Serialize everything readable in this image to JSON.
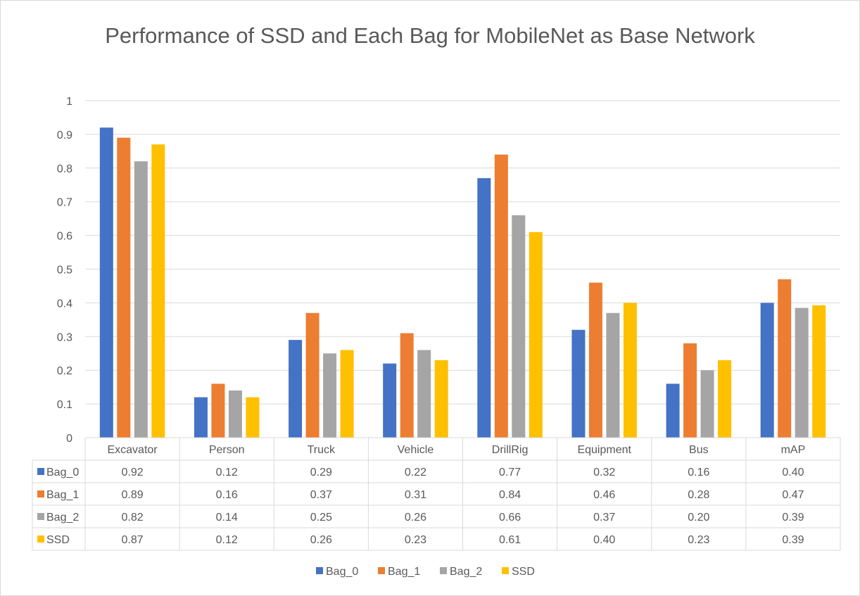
{
  "chart_data": {
    "type": "bar",
    "title": "Performance of SSD and Each Bag for MobileNet as Base Network",
    "categories": [
      "Excavator",
      "Person",
      "Truck",
      "Vehicle",
      "DrillRig",
      "Equipment",
      "Bus",
      "mAP"
    ],
    "series": [
      {
        "name": "Bag_0",
        "color": "#4472C4",
        "values": [
          0.92,
          0.12,
          0.29,
          0.22,
          0.77,
          0.32,
          0.16,
          0.4
        ],
        "labels": [
          "0.92",
          "0.12",
          "0.29",
          "0.22",
          "0.77",
          "0.32",
          "0.16",
          "0.40"
        ]
      },
      {
        "name": "Bag_1",
        "color": "#ED7D31",
        "values": [
          0.89,
          0.16,
          0.37,
          0.31,
          0.84,
          0.46,
          0.28,
          0.47
        ],
        "labels": [
          "0.89",
          "0.16",
          "0.37",
          "0.31",
          "0.84",
          "0.46",
          "0.28",
          "0.47"
        ]
      },
      {
        "name": "Bag_2",
        "color": "#A5A5A5",
        "values": [
          0.82,
          0.14,
          0.25,
          0.26,
          0.66,
          0.37,
          0.2,
          0.385
        ],
        "labels": [
          "0.82",
          "0.14",
          "0.25",
          "0.26",
          "0.66",
          "0.37",
          "0.20",
          "0.39"
        ]
      },
      {
        "name": "SSD",
        "color": "#FFC000",
        "values": [
          0.87,
          0.12,
          0.26,
          0.23,
          0.61,
          0.4,
          0.23,
          0.393
        ],
        "labels": [
          "0.87",
          "0.12",
          "0.26",
          "0.23",
          "0.61",
          "0.40",
          "0.23",
          "0.39"
        ]
      }
    ],
    "ylim": [
      0,
      1
    ],
    "yticks": [
      "0",
      "0.1",
      "0.2",
      "0.3",
      "0.4",
      "0.5",
      "0.6",
      "0.7",
      "0.8",
      "0.9",
      "1"
    ],
    "grid": true,
    "legend": "bottom",
    "data_table": true
  }
}
